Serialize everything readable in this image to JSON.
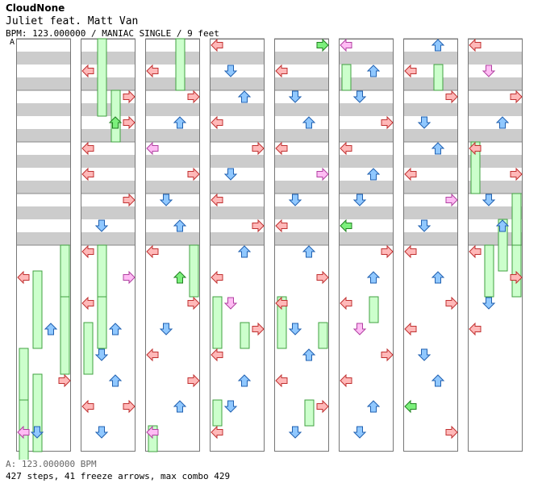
{
  "header": {
    "site": "CloudNone",
    "song_title": "Juliet feat. Matt Van",
    "info": "BPM: 123.000000 / MANIAC SINGLE / 9 feet",
    "bpm_marker": "A"
  },
  "footer": {
    "bpm": "A: 123.000000 BPM",
    "stats": "427 steps, 41 freeze arrows, max combo 429"
  },
  "colors": {
    "left": "#ffb8b8",
    "left_stroke": "#c03030",
    "down": "#90c8ff",
    "down_stroke": "#2060b0",
    "up": "#90c8ff",
    "up_stroke": "#2060b0",
    "right": "#ffb8b8",
    "right_stroke": "#c03030",
    "pink": "#ffbcf4",
    "pink_stroke": "#b040a0",
    "green": "#7cf07c",
    "green_stroke": "#208020",
    "freeze": "#ccffcc",
    "freeze_stroke": "#40a040"
  },
  "chart_data": {
    "type": "table",
    "lanes": [
      "left",
      "down",
      "up",
      "right"
    ],
    "beats_per_column": 16,
    "columns": 8,
    "arrows": [
      [
        1,
        9,
        "L"
      ],
      [
        1,
        11,
        "U"
      ],
      [
        1,
        13,
        "R"
      ],
      [
        1,
        15,
        "L"
      ],
      [
        1,
        15,
        "D"
      ],
      [
        2,
        1,
        "L"
      ],
      [
        2,
        2,
        "R"
      ],
      [
        2,
        3,
        "U"
      ],
      [
        2,
        3,
        "R"
      ],
      [
        2,
        4,
        "L"
      ],
      [
        2,
        5,
        "L"
      ],
      [
        2,
        6,
        "R"
      ],
      [
        2,
        7,
        "D"
      ],
      [
        2,
        8,
        "L"
      ],
      [
        2,
        9,
        "R"
      ],
      [
        2,
        10,
        "L"
      ],
      [
        2,
        11,
        "U"
      ],
      [
        2,
        12,
        "D"
      ],
      [
        2,
        13,
        "U"
      ],
      [
        2,
        14,
        "L"
      ],
      [
        2,
        14,
        "R"
      ],
      [
        2,
        15,
        "D"
      ],
      [
        3,
        1,
        "L"
      ],
      [
        3,
        2,
        "R"
      ],
      [
        3,
        3,
        "U"
      ],
      [
        3,
        4,
        "L"
      ],
      [
        3,
        5,
        "R"
      ],
      [
        3,
        6,
        "D"
      ],
      [
        3,
        7,
        "U"
      ],
      [
        3,
        8,
        "L"
      ],
      [
        3,
        9,
        "U"
      ],
      [
        3,
        10,
        "R"
      ],
      [
        3,
        11,
        "D"
      ],
      [
        3,
        12,
        "L"
      ],
      [
        3,
        13,
        "R"
      ],
      [
        3,
        14,
        "U"
      ],
      [
        3,
        15,
        "L"
      ],
      [
        4,
        0,
        "L"
      ],
      [
        4,
        1,
        "D"
      ],
      [
        4,
        2,
        "U"
      ],
      [
        4,
        3,
        "L"
      ],
      [
        4,
        4,
        "R"
      ],
      [
        4,
        5,
        "D"
      ],
      [
        4,
        6,
        "L"
      ],
      [
        4,
        7,
        "R"
      ],
      [
        4,
        8,
        "U"
      ],
      [
        4,
        9,
        "L"
      ],
      [
        4,
        10,
        "D"
      ],
      [
        4,
        11,
        "R"
      ],
      [
        4,
        12,
        "L"
      ],
      [
        4,
        13,
        "U"
      ],
      [
        4,
        14,
        "D"
      ],
      [
        4,
        15,
        "L"
      ],
      [
        5,
        0,
        "R"
      ],
      [
        5,
        1,
        "L"
      ],
      [
        5,
        2,
        "D"
      ],
      [
        5,
        3,
        "U"
      ],
      [
        5,
        4,
        "L"
      ],
      [
        5,
        5,
        "R"
      ],
      [
        5,
        6,
        "D"
      ],
      [
        5,
        7,
        "L"
      ],
      [
        5,
        8,
        "U"
      ],
      [
        5,
        9,
        "R"
      ],
      [
        5,
        10,
        "L"
      ],
      [
        5,
        11,
        "D"
      ],
      [
        5,
        12,
        "U"
      ],
      [
        5,
        13,
        "L"
      ],
      [
        5,
        14,
        "R"
      ],
      [
        5,
        15,
        "D"
      ],
      [
        6,
        0,
        "L"
      ],
      [
        6,
        1,
        "U"
      ],
      [
        6,
        2,
        "D"
      ],
      [
        6,
        3,
        "R"
      ],
      [
        6,
        4,
        "L"
      ],
      [
        6,
        5,
        "U"
      ],
      [
        6,
        6,
        "D"
      ],
      [
        6,
        7,
        "L"
      ],
      [
        6,
        8,
        "R"
      ],
      [
        6,
        9,
        "U"
      ],
      [
        6,
        10,
        "L"
      ],
      [
        6,
        11,
        "D"
      ],
      [
        6,
        12,
        "R"
      ],
      [
        6,
        13,
        "L"
      ],
      [
        6,
        14,
        "U"
      ],
      [
        6,
        15,
        "D"
      ],
      [
        7,
        0,
        "U"
      ],
      [
        7,
        1,
        "L"
      ],
      [
        7,
        2,
        "R"
      ],
      [
        7,
        3,
        "D"
      ],
      [
        7,
        4,
        "U"
      ],
      [
        7,
        5,
        "L"
      ],
      [
        7,
        6,
        "R"
      ],
      [
        7,
        7,
        "D"
      ],
      [
        7,
        8,
        "L"
      ],
      [
        7,
        9,
        "U"
      ],
      [
        7,
        10,
        "R"
      ],
      [
        7,
        11,
        "L"
      ],
      [
        7,
        12,
        "D"
      ],
      [
        7,
        13,
        "U"
      ],
      [
        7,
        14,
        "L"
      ],
      [
        7,
        15,
        "R"
      ],
      [
        8,
        0,
        "L"
      ],
      [
        8,
        1,
        "D"
      ],
      [
        8,
        2,
        "R"
      ],
      [
        8,
        3,
        "U"
      ],
      [
        8,
        4,
        "L"
      ],
      [
        8,
        5,
        "R"
      ],
      [
        8,
        6,
        "D"
      ],
      [
        8,
        7,
        "U"
      ],
      [
        8,
        8,
        "L"
      ],
      [
        8,
        9,
        "R"
      ],
      [
        8,
        10,
        "D"
      ],
      [
        8,
        11,
        "L"
      ]
    ],
    "freezes": [
      [
        1,
        8,
        2,
        "R"
      ],
      [
        1,
        9,
        3,
        "D"
      ],
      [
        1,
        10,
        3,
        "R"
      ],
      [
        1,
        12,
        2,
        "L"
      ],
      [
        1,
        13,
        3,
        "D"
      ],
      [
        1,
        14,
        3,
        "L"
      ],
      [
        2,
        0,
        3,
        "D"
      ],
      [
        2,
        2,
        2,
        "U"
      ],
      [
        2,
        8,
        3,
        "D"
      ],
      [
        2,
        10,
        2,
        "D"
      ],
      [
        2,
        11,
        2,
        "L"
      ],
      [
        3,
        0,
        2,
        "U"
      ],
      [
        3,
        8,
        2,
        "R"
      ],
      [
        3,
        15,
        1,
        "L"
      ],
      [
        4,
        10,
        2,
        "L"
      ],
      [
        4,
        11,
        1,
        "U"
      ],
      [
        4,
        14,
        1,
        "L"
      ],
      [
        5,
        10,
        2,
        "L"
      ],
      [
        5,
        11,
        1,
        "R"
      ],
      [
        5,
        14,
        1,
        "U"
      ],
      [
        6,
        1,
        1,
        "L"
      ],
      [
        6,
        10,
        1,
        "U"
      ],
      [
        7,
        1,
        1,
        "U"
      ],
      [
        8,
        4,
        2,
        "L"
      ],
      [
        8,
        6,
        2,
        "R"
      ],
      [
        8,
        7,
        2,
        "U"
      ],
      [
        8,
        8,
        2,
        "D"
      ],
      [
        8,
        8,
        2,
        "R"
      ]
    ]
  }
}
